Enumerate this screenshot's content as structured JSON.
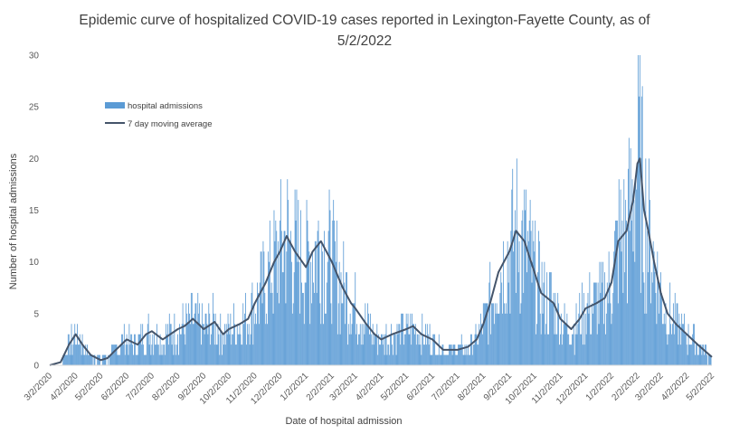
{
  "chart_data": {
    "type": "bar",
    "title": "Epidemic curve of hospitalized COVID-19 cases reported in Lexington-Fayette County, as of 5/2/2022",
    "title_lines": [
      "Epidemic curve of hospitalized COVID-19 cases reported in Lexington-Fayette County, as of",
      "5/2/2022"
    ],
    "xlabel": "Date of hospital admission",
    "ylabel": "Number of hospital admissions",
    "ylim": [
      0,
      30
    ],
    "yticks": [
      "0",
      "5",
      "10",
      "15",
      "20",
      "25",
      "30"
    ],
    "x_range": [
      "2020-03-02",
      "2022-05-02"
    ],
    "xticks": [
      "3/2/2020",
      "4/2/2020",
      "5/2/2020",
      "6/2/2020",
      "7/2/2020",
      "8/2/2020",
      "9/2/2020",
      "10/2/2020",
      "11/2/2020",
      "12/2/2020",
      "1/2/2021",
      "2/2/2021",
      "3/2/2021",
      "4/2/2021",
      "5/2/2021",
      "6/2/2021",
      "7/2/2021",
      "8/2/2021",
      "9/2/2021",
      "10/2/2021",
      "11/2/2021",
      "12/2/2021",
      "1/2/2022",
      "2/2/2022",
      "3/2/2022",
      "4/2/2022",
      "5/2/2022"
    ],
    "grid": false,
    "legend_position": "top-left",
    "series": [
      {
        "name": "hospital admissions",
        "kind": "bar",
        "color": "#5b9bd5",
        "description": "daily hospital admissions",
        "trend_points": [
          [
            "2020-03-02",
            0
          ],
          [
            "2020-03-15",
            0.3
          ],
          [
            "2020-03-25",
            2
          ],
          [
            "2020-04-02",
            3
          ],
          [
            "2020-04-10",
            2
          ],
          [
            "2020-04-20",
            1
          ],
          [
            "2020-05-02",
            0.5
          ],
          [
            "2020-05-10",
            0.7
          ],
          [
            "2020-05-20",
            1.5
          ],
          [
            "2020-06-02",
            2.5
          ],
          [
            "2020-06-15",
            2
          ],
          [
            "2020-06-25",
            3
          ],
          [
            "2020-07-02",
            3.3
          ],
          [
            "2020-07-15",
            2.5
          ],
          [
            "2020-08-02",
            3.5
          ],
          [
            "2020-08-10",
            3.8
          ],
          [
            "2020-08-20",
            4.5
          ],
          [
            "2020-09-02",
            3.5
          ],
          [
            "2020-09-15",
            4.2
          ],
          [
            "2020-09-25",
            3
          ],
          [
            "2020-10-02",
            3.5
          ],
          [
            "2020-10-15",
            4
          ],
          [
            "2020-10-25",
            4.5
          ],
          [
            "2020-11-02",
            6
          ],
          [
            "2020-11-15",
            8
          ],
          [
            "2020-11-25",
            10
          ],
          [
            "2020-12-02",
            11
          ],
          [
            "2020-12-10",
            12.5
          ],
          [
            "2020-12-20",
            11
          ],
          [
            "2021-01-02",
            9.5
          ],
          [
            "2021-01-10",
            11
          ],
          [
            "2021-01-20",
            12
          ],
          [
            "2021-02-02",
            10
          ],
          [
            "2021-02-15",
            7.5
          ],
          [
            "2021-02-25",
            6
          ],
          [
            "2021-03-02",
            5.5
          ],
          [
            "2021-03-15",
            4
          ],
          [
            "2021-03-25",
            3
          ],
          [
            "2021-04-02",
            2.5
          ],
          [
            "2021-04-15",
            3
          ],
          [
            "2021-05-02",
            3.5
          ],
          [
            "2021-05-10",
            3.8
          ],
          [
            "2021-05-20",
            3
          ],
          [
            "2021-06-02",
            2.5
          ],
          [
            "2021-06-15",
            1.5
          ],
          [
            "2021-07-02",
            1.5
          ],
          [
            "2021-07-15",
            1.8
          ],
          [
            "2021-07-25",
            2.5
          ],
          [
            "2021-08-02",
            4
          ],
          [
            "2021-08-10",
            6
          ],
          [
            "2021-08-20",
            9
          ],
          [
            "2021-09-02",
            11
          ],
          [
            "2021-09-10",
            13
          ],
          [
            "2021-09-20",
            12
          ],
          [
            "2021-10-02",
            9
          ],
          [
            "2021-10-10",
            7
          ],
          [
            "2021-10-25",
            6
          ],
          [
            "2021-11-02",
            4.5
          ],
          [
            "2021-11-15",
            3.5
          ],
          [
            "2021-11-25",
            4.5
          ],
          [
            "2021-12-02",
            5.5
          ],
          [
            "2021-12-15",
            6
          ],
          [
            "2021-12-25",
            6.5
          ],
          [
            "2022-01-02",
            8
          ],
          [
            "2022-01-10",
            12
          ],
          [
            "2022-01-20",
            13
          ],
          [
            "2022-01-28",
            16
          ],
          [
            "2022-02-02",
            19.5
          ],
          [
            "2022-02-05",
            20
          ],
          [
            "2022-02-10",
            15
          ],
          [
            "2022-02-15",
            13
          ],
          [
            "2022-02-22",
            10
          ],
          [
            "2022-03-02",
            7
          ],
          [
            "2022-03-10",
            5
          ],
          [
            "2022-03-20",
            4
          ],
          [
            "2022-04-02",
            3
          ],
          [
            "2022-04-15",
            2
          ],
          [
            "2022-05-02",
            0.8
          ]
        ]
      },
      {
        "name": "7 day moving average",
        "kind": "line",
        "color": "#44546a",
        "points": [
          [
            "2020-03-02",
            0
          ],
          [
            "2020-03-15",
            0.3
          ],
          [
            "2020-03-25",
            2
          ],
          [
            "2020-04-02",
            3
          ],
          [
            "2020-04-10",
            2
          ],
          [
            "2020-04-20",
            1
          ],
          [
            "2020-05-02",
            0.5
          ],
          [
            "2020-05-10",
            0.7
          ],
          [
            "2020-05-20",
            1.5
          ],
          [
            "2020-06-02",
            2.5
          ],
          [
            "2020-06-15",
            2
          ],
          [
            "2020-06-25",
            3
          ],
          [
            "2020-07-02",
            3.3
          ],
          [
            "2020-07-15",
            2.5
          ],
          [
            "2020-08-02",
            3.5
          ],
          [
            "2020-08-10",
            3.8
          ],
          [
            "2020-08-20",
            4.5
          ],
          [
            "2020-09-02",
            3.5
          ],
          [
            "2020-09-15",
            4.2
          ],
          [
            "2020-09-25",
            3
          ],
          [
            "2020-10-02",
            3.5
          ],
          [
            "2020-10-15",
            4
          ],
          [
            "2020-10-25",
            4.5
          ],
          [
            "2020-11-02",
            6
          ],
          [
            "2020-11-15",
            8
          ],
          [
            "2020-11-25",
            10
          ],
          [
            "2020-12-02",
            11
          ],
          [
            "2020-12-10",
            12.5
          ],
          [
            "2020-12-20",
            11
          ],
          [
            "2021-01-02",
            9.5
          ],
          [
            "2021-01-10",
            11
          ],
          [
            "2021-01-20",
            12
          ],
          [
            "2021-02-02",
            10
          ],
          [
            "2021-02-15",
            7.5
          ],
          [
            "2021-02-25",
            6
          ],
          [
            "2021-03-02",
            5.5
          ],
          [
            "2021-03-15",
            4
          ],
          [
            "2021-03-25",
            3
          ],
          [
            "2021-04-02",
            2.5
          ],
          [
            "2021-04-15",
            3
          ],
          [
            "2021-05-02",
            3.5
          ],
          [
            "2021-05-10",
            3.8
          ],
          [
            "2021-05-20",
            3
          ],
          [
            "2021-06-02",
            2.5
          ],
          [
            "2021-06-15",
            1.5
          ],
          [
            "2021-07-02",
            1.5
          ],
          [
            "2021-07-15",
            1.8
          ],
          [
            "2021-07-25",
            2.5
          ],
          [
            "2021-08-02",
            4
          ],
          [
            "2021-08-10",
            6
          ],
          [
            "2021-08-20",
            9
          ],
          [
            "2021-09-02",
            11
          ],
          [
            "2021-09-10",
            13
          ],
          [
            "2021-09-20",
            12
          ],
          [
            "2021-10-02",
            9
          ],
          [
            "2021-10-10",
            7
          ],
          [
            "2021-10-25",
            6
          ],
          [
            "2021-11-02",
            4.5
          ],
          [
            "2021-11-15",
            3.5
          ],
          [
            "2021-11-25",
            4.5
          ],
          [
            "2021-12-02",
            5.5
          ],
          [
            "2021-12-15",
            6
          ],
          [
            "2021-12-25",
            6.5
          ],
          [
            "2022-01-02",
            8
          ],
          [
            "2022-01-10",
            12
          ],
          [
            "2022-01-20",
            13
          ],
          [
            "2022-01-28",
            16
          ],
          [
            "2022-02-02",
            19.5
          ],
          [
            "2022-02-05",
            20
          ],
          [
            "2022-02-10",
            15
          ],
          [
            "2022-02-15",
            13
          ],
          [
            "2022-02-22",
            10
          ],
          [
            "2022-03-02",
            7
          ],
          [
            "2022-03-10",
            5
          ],
          [
            "2022-03-20",
            4
          ],
          [
            "2022-04-02",
            3
          ],
          [
            "2022-04-15",
            2
          ],
          [
            "2022-05-02",
            0.8
          ]
        ]
      }
    ]
  }
}
